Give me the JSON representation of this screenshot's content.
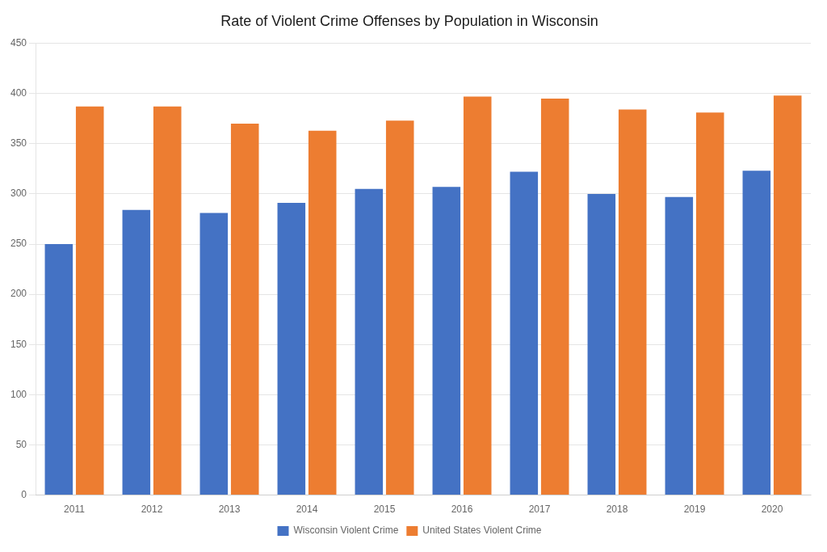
{
  "chart_data": {
    "type": "bar",
    "title": "Rate of Violent Crime Offenses by Population in Wisconsin",
    "categories": [
      "2011",
      "2012",
      "2013",
      "2014",
      "2015",
      "2016",
      "2017",
      "2018",
      "2019",
      "2020"
    ],
    "series": [
      {
        "name": "Wisconsin Violent Crime",
        "color": "#4472C4",
        "values": [
          250,
          284,
          281,
          291,
          305,
          307,
          322,
          300,
          297,
          323
        ]
      },
      {
        "name": "United States Violent Crime",
        "color": "#ED7D31",
        "values": [
          387,
          387,
          370,
          363,
          373,
          397,
          395,
          384,
          381,
          398
        ]
      }
    ],
    "ylim": [
      0,
      450
    ],
    "yticks": [
      0,
      50,
      100,
      150,
      200,
      250,
      300,
      350,
      400,
      450
    ],
    "grid": true,
    "legend": "bottom"
  }
}
